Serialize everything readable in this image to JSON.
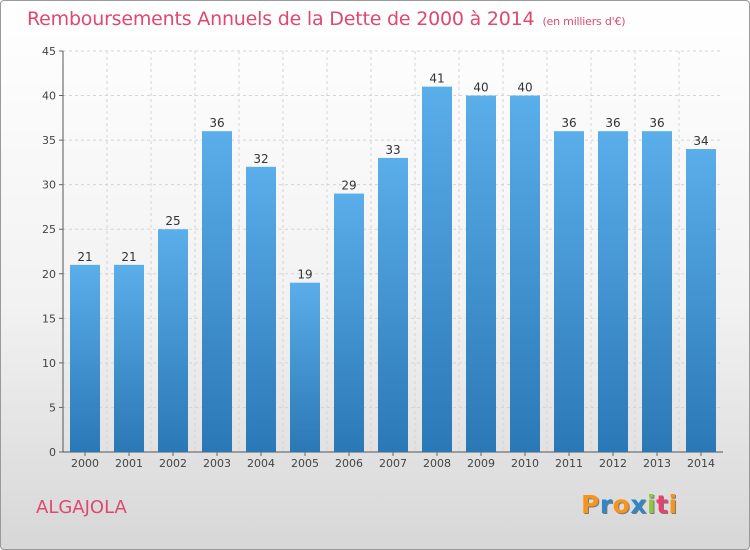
{
  "title": "Remboursements Annuels de la Dette de 2000 à 2014",
  "subtitle": "(en milliers d'€)",
  "commune": "ALGAJOLA",
  "logo": {
    "letters": [
      "P",
      "r",
      "o",
      "x",
      "i",
      "t",
      "i"
    ],
    "colors": [
      "#f7941d",
      "#2f87c7",
      "#f7941d",
      "#2f87c7",
      "#8dc63f",
      "#e8416f",
      "#f7941d"
    ]
  },
  "chart_data": {
    "type": "bar",
    "title": "Remboursements Annuels de la Dette de 2000 à 2014",
    "unit": "(en milliers d'€)",
    "categories": [
      "2000",
      "2001",
      "2002",
      "2003",
      "2004",
      "2005",
      "2006",
      "2007",
      "2008",
      "2009",
      "2010",
      "2011",
      "2012",
      "2013",
      "2014"
    ],
    "values": [
      21,
      21,
      25,
      36,
      32,
      19,
      29,
      33,
      41,
      40,
      40,
      36,
      36,
      36,
      34
    ],
    "ylim": [
      0,
      45
    ],
    "yticks": [
      0,
      5,
      10,
      15,
      20,
      25,
      30,
      35,
      40,
      45
    ],
    "grid": true,
    "bar_color_top": "#5aaeea",
    "bar_color_bottom": "#2b78b6"
  }
}
